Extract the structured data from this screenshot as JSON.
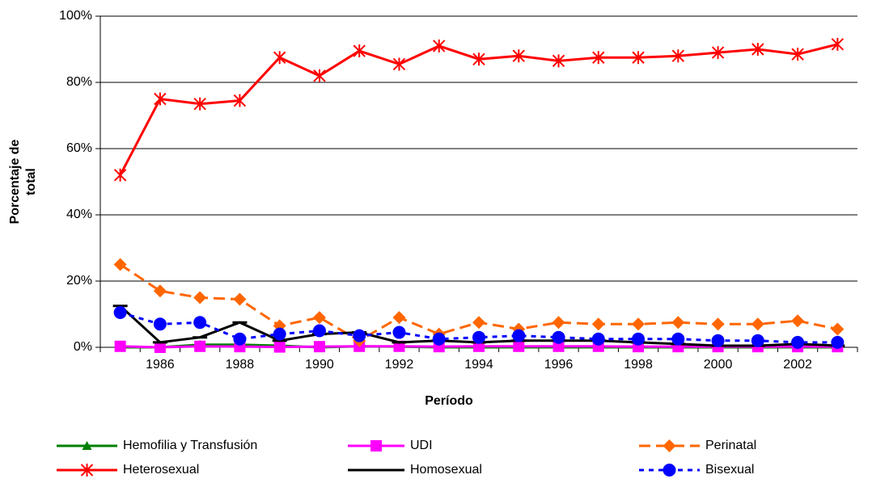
{
  "chart_data": {
    "type": "line",
    "xlabel": "Período",
    "ylabel": [
      "Porcentaje de",
      "total"
    ],
    "categories": [
      null,
      1986,
      null,
      1988,
      null,
      1990,
      null,
      1992,
      null,
      1994,
      null,
      1996,
      null,
      1998,
      null,
      2000,
      null,
      2002,
      null
    ],
    "ylim": [
      0,
      100
    ],
    "yticks": [
      {
        "value": 0,
        "label": "0%"
      },
      {
        "value": 20,
        "label": "20%"
      },
      {
        "value": 40,
        "label": "40%"
      },
      {
        "value": 60,
        "label": "60%"
      },
      {
        "value": 80,
        "label": "80%"
      },
      {
        "value": 100,
        "label": "100%"
      }
    ],
    "grid": true,
    "legend": "bottom",
    "series": [
      {
        "name": "Hemofilia y Transfusión",
        "color": "#008000",
        "marker": "triangle",
        "dash": "solid",
        "values": [
          0,
          0,
          0.8,
          0.8,
          0.5,
          0,
          0.3,
          0.2,
          0,
          0,
          0,
          0,
          0,
          0,
          0,
          0,
          0,
          0,
          0
        ]
      },
      {
        "name": "UDI",
        "color": "#ff00ff",
        "marker": "square",
        "dash": "solid",
        "values": [
          0.3,
          0,
          0.3,
          0.2,
          0.1,
          0.2,
          0.3,
          0.3,
          0.2,
          0.3,
          0.3,
          0.3,
          0.3,
          0.2,
          0.2,
          0.2,
          0.2,
          0.2,
          0.2
        ]
      },
      {
        "name": "Perinatal",
        "color": "#ff6600",
        "marker": "diamond",
        "dash": "dashed",
        "values": [
          25,
          17,
          15,
          14.5,
          6.5,
          9,
          2,
          9,
          4,
          7.5,
          5.5,
          7.5,
          7,
          7,
          7.5,
          7,
          7,
          8,
          5.5
        ]
      },
      {
        "name": "Heterosexual",
        "color": "#ff0000",
        "marker": "star",
        "dash": "solid",
        "values": [
          52,
          75,
          73.5,
          74.5,
          87.5,
          82,
          89.5,
          85.5,
          91,
          87,
          88,
          86.5,
          87.5,
          87.5,
          88,
          89,
          90,
          88.5,
          91.5
        ]
      },
      {
        "name": "Homosexual",
        "color": "#000000",
        "marker": "dash",
        "dash": "solid",
        "values": [
          12.5,
          1.5,
          3,
          7.5,
          2,
          4,
          4.5,
          1.5,
          2,
          1.5,
          2,
          2,
          2,
          1.5,
          1,
          0.5,
          0.5,
          1,
          0.5
        ]
      },
      {
        "name": "Bisexual",
        "color": "#0000ff",
        "marker": "circle",
        "dash": "dotted",
        "values": [
          10.5,
          7,
          7.5,
          2.5,
          4,
          5,
          3.5,
          4.5,
          2.5,
          3,
          3.5,
          3,
          2.5,
          2.5,
          2.5,
          2,
          2,
          1.5,
          1.5
        ]
      }
    ]
  }
}
